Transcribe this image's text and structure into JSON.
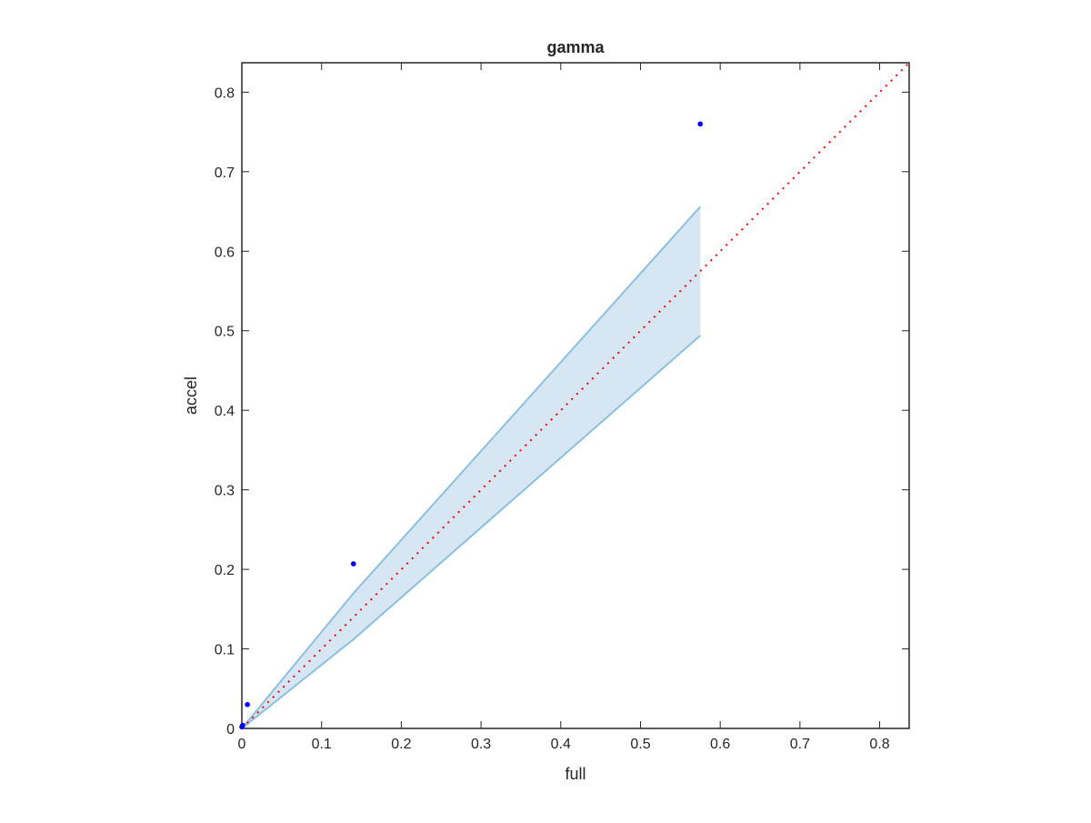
{
  "chart_data": {
    "type": "scatter",
    "title": "gamma",
    "xlabel": "full",
    "ylabel": "accel",
    "xlim": [
      0,
      0.837
    ],
    "ylim": [
      0,
      0.837
    ],
    "xticks": [
      0,
      0.1,
      0.2,
      0.3,
      0.4,
      0.5,
      0.6,
      0.7,
      0.8
    ],
    "yticks": [
      0,
      0.1,
      0.2,
      0.3,
      0.4,
      0.5,
      0.6,
      0.7,
      0.8
    ],
    "xtick_labels": [
      "0",
      "0.1",
      "0.2",
      "0.3",
      "0.4",
      "0.5",
      "0.6",
      "0.7",
      "0.8"
    ],
    "ytick_labels": [
      "0",
      "0.1",
      "0.2",
      "0.3",
      "0.4",
      "0.5",
      "0.6",
      "0.7",
      "0.8"
    ],
    "grid": false,
    "points": [
      {
        "x": 0.0,
        "y": 0.002
      },
      {
        "x": 0.001,
        "y": 0.004
      },
      {
        "x": 0.007,
        "y": 0.03
      },
      {
        "x": 0.14,
        "y": 0.207
      },
      {
        "x": 0.575,
        "y": 0.76
      }
    ],
    "band": {
      "x": [
        0,
        0.14,
        0.575
      ],
      "upper": [
        0,
        0.17,
        0.656
      ],
      "lower": [
        0,
        0.112,
        0.494
      ]
    },
    "reference_line": {
      "x": [
        0,
        0.837
      ],
      "y": [
        0,
        0.837
      ],
      "style": "dotted"
    },
    "colors": {
      "points": "#0000ff",
      "band_fill": "#d6e7f3",
      "band_edge": "#8cc0e0",
      "reference_line": "#ff0000",
      "axes": "#262626"
    }
  }
}
